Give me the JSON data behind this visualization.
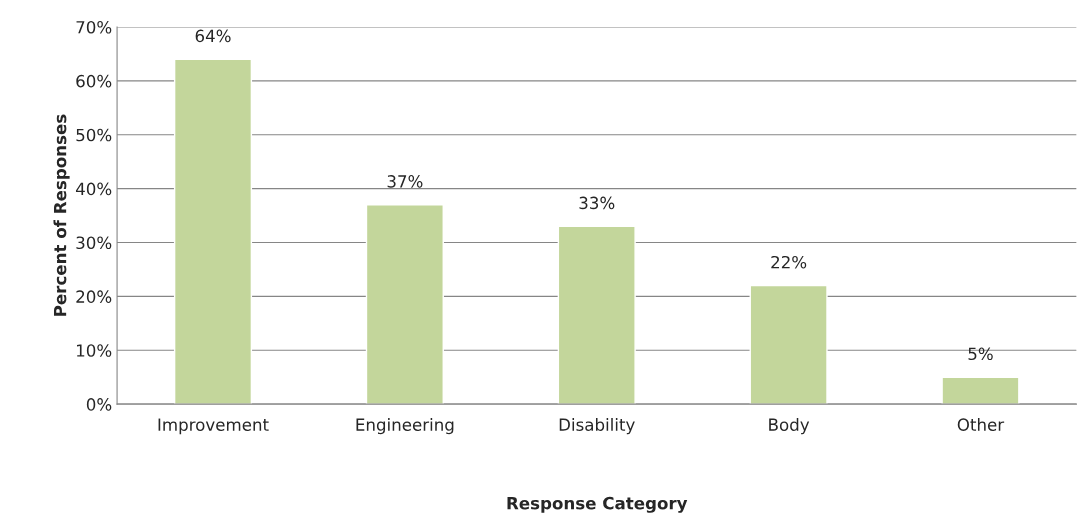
{
  "chart_data": {
    "type": "bar",
    "xlabel": "Response Category",
    "ylabel": "Percent of Responses",
    "categories": [
      "Improvement",
      "Engineering",
      "Disability",
      "Body",
      "Other"
    ],
    "values": [
      64,
      37,
      33,
      22,
      5
    ],
    "value_labels": [
      "64%",
      "37%",
      "33%",
      "22%",
      "5%"
    ],
    "color": "#c3d69b",
    "ylim": [
      0,
      70
    ],
    "yticks": [
      {
        "value": 0,
        "label": "0%"
      },
      {
        "value": 10,
        "label": "10%"
      },
      {
        "value": 20,
        "label": "20%"
      },
      {
        "value": 30,
        "label": "30%"
      },
      {
        "value": 40,
        "label": "40%"
      },
      {
        "value": 50,
        "label": "50%"
      },
      {
        "value": 60,
        "label": "60%"
      },
      {
        "value": 70,
        "label": "70%"
      }
    ],
    "grid": "y",
    "legend": false
  }
}
